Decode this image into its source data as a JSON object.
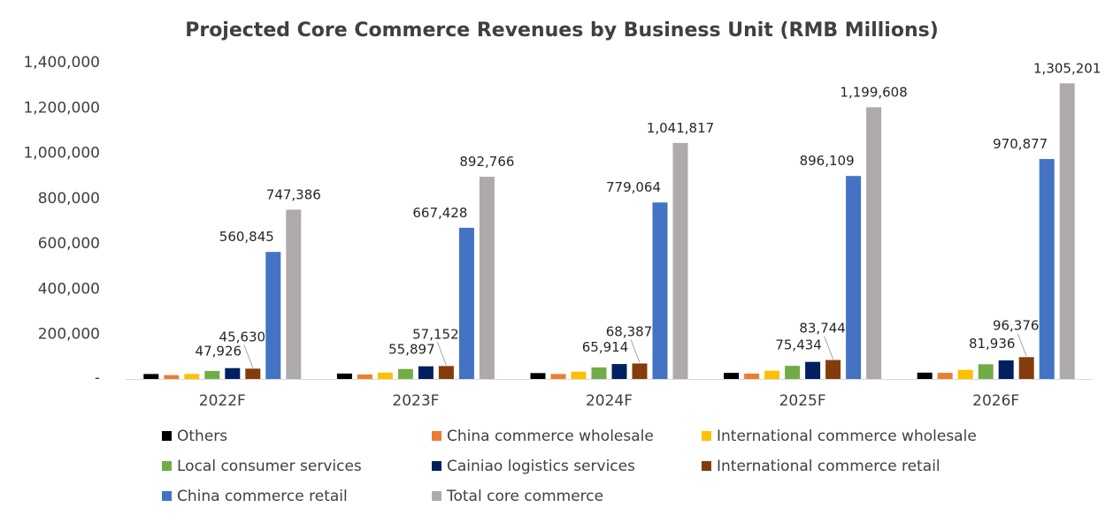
{
  "chart_data": {
    "type": "bar",
    "title": "Projected Core Commerce Revenues by Business Unit (RMB Millions)",
    "xlabel": "",
    "ylabel": "",
    "categories": [
      "2022F",
      "2023F",
      "2024F",
      "2025F",
      "2026F"
    ],
    "ylim": [
      0,
      1400000
    ],
    "yticks": [
      0,
      200000,
      400000,
      600000,
      800000,
      1000000,
      1200000,
      1400000
    ],
    "ytick_labels": [
      "-",
      "200,000",
      "400,000",
      "600,000",
      "800,000",
      "1,000,000",
      "1,200,000",
      "1,400,000"
    ],
    "grid": false,
    "legend_position": "bottom",
    "series": [
      {
        "name": "Others",
        "color": "#000000",
        "values": [
          22000,
          24000,
          26000,
          27000,
          28000
        ],
        "labels": [
          null,
          null,
          null,
          null,
          null
        ]
      },
      {
        "name": "China commerce wholesale",
        "color": "#ED7D31",
        "values": [
          17000,
          20000,
          22000,
          24000,
          27000
        ],
        "labels": [
          null,
          null,
          null,
          null,
          null
        ]
      },
      {
        "name": "International commerce wholesale",
        "color": "#FFC000",
        "values": [
          22000,
          28000,
          32000,
          36000,
          40000
        ],
        "labels": [
          null,
          null,
          null,
          null,
          null
        ]
      },
      {
        "name": "Local consumer services",
        "color": "#70AD47",
        "values": [
          35000,
          44000,
          51000,
          58000,
          65000
        ],
        "labels": [
          null,
          null,
          null,
          null,
          null
        ]
      },
      {
        "name": "Cainiao logistics services",
        "color": "#002060",
        "values": [
          47926,
          55897,
          65914,
          75434,
          81936
        ],
        "labels": [
          "47,926",
          "55,897",
          "65,914",
          "75,434",
          "81,936"
        ]
      },
      {
        "name": "International commerce retail",
        "color": "#843C0C",
        "values": [
          45630,
          57152,
          68387,
          83744,
          96376
        ],
        "labels": [
          "45,630",
          "57,152",
          "68,387",
          "83,744",
          "96,376"
        ]
      },
      {
        "name": "China commerce retail",
        "color": "#4472C4",
        "values": [
          560845,
          667428,
          779064,
          896109,
          970877
        ],
        "labels": [
          "560,845",
          "667,428",
          "779,064",
          "896,109",
          "970,877"
        ]
      },
      {
        "name": "Total core commerce",
        "color": "#AEAAAA",
        "values": [
          747386,
          892766,
          1041817,
          1199608,
          1305201
        ],
        "labels": [
          "747,386",
          "892,766",
          "1,041,817",
          "1,199,608",
          "1,305,201"
        ]
      }
    ]
  }
}
